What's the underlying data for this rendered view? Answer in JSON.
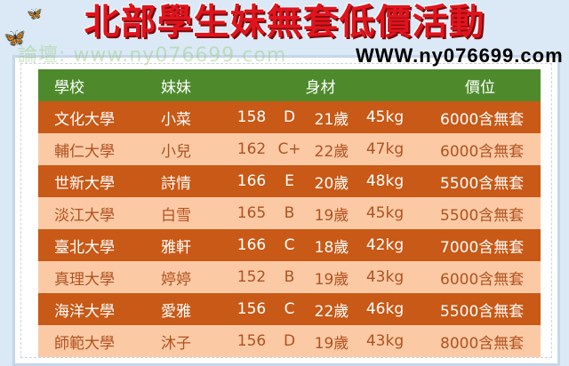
{
  "title": "北部學生妹無套低價活動",
  "watermark_top": "論壇: www.ny076699.com",
  "watermark_bottom": "WWW.ny076699.com",
  "headers": {
    "school": "學校",
    "girl": "妹妹",
    "figure": "身材",
    "price": "價位"
  },
  "rows": [
    {
      "school": "文化大學",
      "name": "小菜",
      "height": "158",
      "cup": "D",
      "age": "21歲",
      "weight": "45kg",
      "price": "6000含無套"
    },
    {
      "school": "輔仁大學",
      "name": "小兒",
      "height": "162",
      "cup": "C+",
      "age": "22歲",
      "weight": "47kg",
      "price": "6000含無套"
    },
    {
      "school": "世新大學",
      "name": "詩情",
      "height": "166",
      "cup": "E",
      "age": "20歲",
      "weight": "48kg",
      "price": "5500含無套"
    },
    {
      "school": "淡江大學",
      "name": "白雪",
      "height": "165",
      "cup": "B",
      "age": "19歲",
      "weight": "45kg",
      "price": "5500含無套"
    },
    {
      "school": "臺北大學",
      "name": "雅軒",
      "height": "166",
      "cup": "C",
      "age": "18歲",
      "weight": "42kg",
      "price": "7000含無套"
    },
    {
      "school": "真理大學",
      "name": "婷婷",
      "height": "152",
      "cup": "B",
      "age": "19歲",
      "weight": "43kg",
      "price": "6000含無套"
    },
    {
      "school": "海洋大學",
      "name": "愛雅",
      "height": "156",
      "cup": "C",
      "age": "22歲",
      "weight": "46kg",
      "price": "5500含無套"
    },
    {
      "school": "師範大學",
      "name": "沐子",
      "height": "156",
      "cup": "D",
      "age": "19歲",
      "weight": "43kg",
      "price": "8000含無套"
    }
  ],
  "colors": {
    "header": "#4e8a2c",
    "dark_row": "#c85916",
    "light_row": "#fbcaa5",
    "title": "#e0141e"
  }
}
